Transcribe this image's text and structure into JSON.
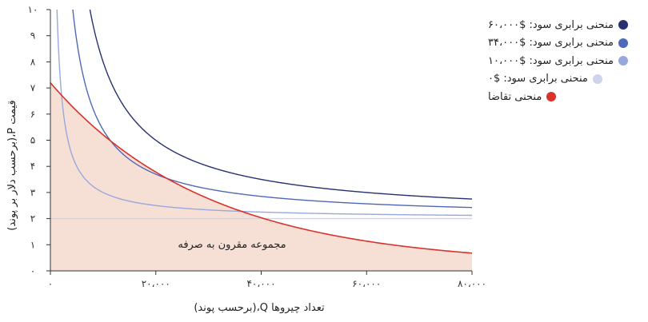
{
  "chart_data": {
    "type": "line",
    "xlabel": "تعداد چیروها Q،(برحسب پوند)",
    "ylabel": "قیمت P،(برحسب دلار بر پوند)",
    "xlim": [
      0,
      80000
    ],
    "ylim": [
      0,
      10
    ],
    "x_ticks": [
      {
        "value": 0,
        "label": "۰"
      },
      {
        "value": 20000,
        "label": "۲۰،۰۰۰"
      },
      {
        "value": 40000,
        "label": "۴۰،۰۰۰"
      },
      {
        "value": 60000,
        "label": "۶۰،۰۰۰"
      },
      {
        "value": 80000,
        "label": "۸۰،۰۰۰"
      }
    ],
    "y_ticks": [
      {
        "value": 0,
        "label": "۰"
      },
      {
        "value": 1,
        "label": "۱"
      },
      {
        "value": 2,
        "label": "۲"
      },
      {
        "value": 3,
        "label": "۳"
      },
      {
        "value": 4,
        "label": "۴"
      },
      {
        "value": 5,
        "label": "۵"
      },
      {
        "value": 6,
        "label": "۶"
      },
      {
        "value": 7,
        "label": "۷"
      },
      {
        "value": 8,
        "label": "۸"
      },
      {
        "value": 9,
        "label": "۹"
      },
      {
        "value": 10,
        "label": "۱۰"
      }
    ],
    "series": [
      {
        "name": "منحنی برابری سود: $۶۰،۰۰۰",
        "color": "#283070",
        "kind": "isoprofit",
        "profit": 60000,
        "cost": 2,
        "x": [
          7000,
          8000,
          10000,
          15000,
          20000,
          30000,
          40000,
          60000,
          80000
        ],
        "y": [
          10.57,
          9.5,
          8.0,
          6.0,
          5.0,
          4.0,
          3.5,
          3.0,
          2.75
        ]
      },
      {
        "name": "منحنی برابری سود: $۳۴،۰۰۰",
        "color": "#5068b8",
        "kind": "isoprofit",
        "profit": 34000,
        "cost": 2,
        "x": [
          4000,
          5000,
          8000,
          10000,
          15000,
          20000,
          40000,
          60000,
          80000
        ],
        "y": [
          10.5,
          8.8,
          6.25,
          5.4,
          4.27,
          3.7,
          2.85,
          2.57,
          2.43
        ]
      },
      {
        "name": "منحنی برابری سود: $۱۰،۰۰۰",
        "color": "#98a8dc",
        "kind": "isoprofit",
        "profit": 10000,
        "cost": 2,
        "x": [
          1200,
          1500,
          2000,
          3000,
          5000,
          10000,
          20000,
          40000,
          80000
        ],
        "y": [
          10.33,
          8.67,
          7.0,
          5.33,
          4.0,
          3.0,
          2.5,
          2.25,
          2.13
        ]
      },
      {
        "name": "منحنی برابری سود: $۰",
        "color": "#ccd4ee",
        "kind": "isoprofit",
        "profit": 0,
        "cost": 2,
        "x": [
          0,
          80000
        ],
        "y": [
          2,
          2
        ]
      },
      {
        "name": "منحنی تقاضا",
        "color": "#d8322a",
        "kind": "demand",
        "x": [
          0,
          10000,
          20000,
          32000,
          40000,
          60000,
          80000
        ],
        "y": [
          7.2,
          5.4,
          3.9,
          2.6,
          1.95,
          1.0,
          0.45
        ]
      }
    ],
    "fill_label": "مجموعه مقرون به صرفه",
    "fill_color": "#f6e0d6",
    "grid": false,
    "legend_position": "top-right"
  }
}
